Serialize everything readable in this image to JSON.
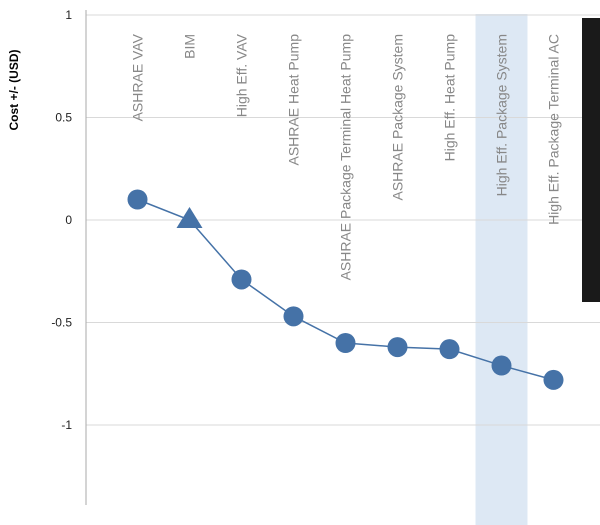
{
  "chart_data": {
    "type": "line",
    "title": "",
    "xlabel": "",
    "ylabel": "Cost +/- (USD)",
    "ylim": [
      -1.4,
      1
    ],
    "yticks": [
      1,
      0.5,
      0,
      -0.5,
      -1
    ],
    "ytick_labels": [
      "1",
      "0.5",
      "0",
      "-0.5",
      "-1"
    ],
    "grid": true,
    "categories": [
      "ASHRAE VAV",
      "BIM",
      "High Eff. VAV",
      "ASHRAE Heat Pump",
      "ASHRAE Package Terminal Heat Pump",
      "ASHRAE Package System",
      "High Eff. Heat Pump",
      "High Eff. Package System",
      "High Eff. Package Terminal AC"
    ],
    "series": [
      {
        "values": [
          0.1,
          0.0,
          -0.29,
          -0.47,
          -0.6,
          -0.62,
          -0.63,
          -0.71,
          -0.78
        ],
        "markers": [
          "circle",
          "triangle",
          "circle",
          "circle",
          "circle",
          "circle",
          "circle",
          "circle",
          "circle"
        ],
        "color": "#4572a7"
      }
    ],
    "highlighted_category": "High Eff. Package System",
    "highlight_color": "#dde8f4",
    "tooltip_color": "#1a1a1a"
  }
}
